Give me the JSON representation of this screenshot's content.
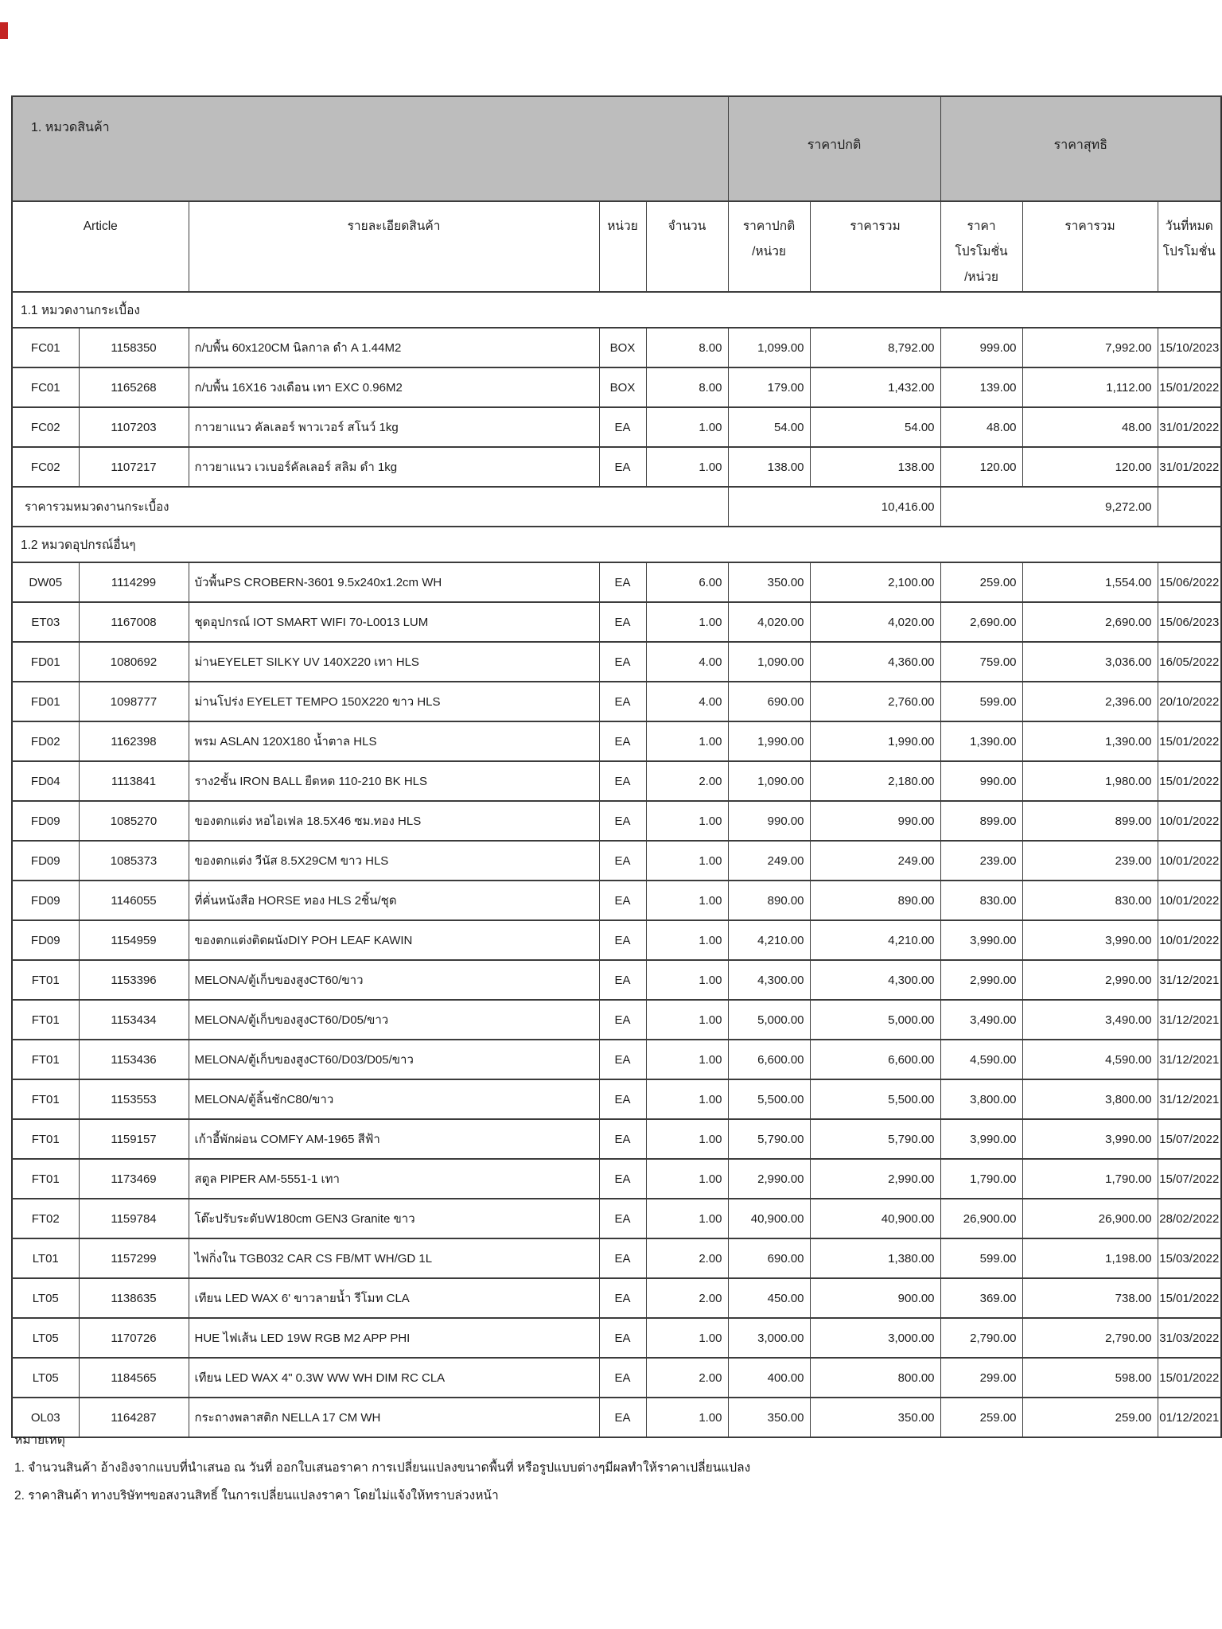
{
  "colors": {
    "header_bg": "#bdbdbd",
    "border": "#3c3c3c",
    "red_mark": "#c42423",
    "page_bg": "#ffffff",
    "text": "#1b1b1b"
  },
  "header": {
    "title": "1. หมวดสินค้า",
    "normal_price_group": "ราคาปกติ",
    "net_price_group": "ราคาสุทธิ"
  },
  "columns": {
    "article": "Article",
    "description": "รายละเอียดสินค้า",
    "unit": "หน่วย",
    "qty": "จำนวน",
    "normal_unit_price_line1": "ราคาปกติ",
    "normal_unit_price_line2": "/หน่วย",
    "normal_total": "ราคารวม",
    "promo_unit_price_line1": "ราคา",
    "promo_unit_price_line2": "โปรโมชั่น",
    "promo_unit_price_line3": "/หน่วย",
    "promo_total": "ราคารวม",
    "promo_end_line1": "วันที่หมด",
    "promo_end_line2": "โปรโมชั่น"
  },
  "sections": [
    {
      "heading": "1.1 หมวดงานกระเบื้อง",
      "rows": [
        [
          "FC01",
          "1158350",
          "ก/บพื้น 60x120CM นิลกาล ดำ A 1.44M2",
          "BOX",
          "8.00",
          "1,099.00",
          "8,792.00",
          "999.00",
          "7,992.00",
          "15/10/2023"
        ],
        [
          "FC01",
          "1165268",
          "ก/บพื้น 16X16 วงเดือน เทา EXC 0.96M2",
          "BOX",
          "8.00",
          "179.00",
          "1,432.00",
          "139.00",
          "1,112.00",
          "15/01/2022"
        ],
        [
          "FC02",
          "1107203",
          "กาวยาแนว คัลเลอร์ พาวเวอร์ สโนว์ 1kg",
          "EA",
          "1.00",
          "54.00",
          "54.00",
          "48.00",
          "48.00",
          "31/01/2022"
        ],
        [
          "FC02",
          "1107217",
          "กาวยาแนว เวเบอร์คัลเลอร์ สลิม ดำ 1kg",
          "EA",
          "1.00",
          "138.00",
          "138.00",
          "120.00",
          "120.00",
          "31/01/2022"
        ]
      ],
      "subtotal": {
        "label": "ราคารวมหมวดงานกระเบื้อง",
        "normal_total": "10,416.00",
        "net_total": "9,272.00"
      }
    },
    {
      "heading": "1.2 หมวดอุปกรณ์อื่นๆ",
      "rows": [
        [
          "DW05",
          "1114299",
          "บัวพื้นPS CROBERN-3601 9.5x240x1.2cm WH",
          "EA",
          "6.00",
          "350.00",
          "2,100.00",
          "259.00",
          "1,554.00",
          "15/06/2022"
        ],
        [
          "ET03",
          "1167008",
          "ชุดอุปกรณ์ IOT SMART WIFI 70-L0013 LUM",
          "EA",
          "1.00",
          "4,020.00",
          "4,020.00",
          "2,690.00",
          "2,690.00",
          "15/06/2023"
        ],
        [
          "FD01",
          "1080692",
          "ม่านEYELET SILKY UV 140X220 เทา HLS",
          "EA",
          "4.00",
          "1,090.00",
          "4,360.00",
          "759.00",
          "3,036.00",
          "16/05/2022"
        ],
        [
          "FD01",
          "1098777",
          "ม่านโปร่ง EYELET TEMPO 150X220 ขาว HLS",
          "EA",
          "4.00",
          "690.00",
          "2,760.00",
          "599.00",
          "2,396.00",
          "20/10/2022"
        ],
        [
          "FD02",
          "1162398",
          "พรม ASLAN 120X180 น้ำตาล HLS",
          "EA",
          "1.00",
          "1,990.00",
          "1,990.00",
          "1,390.00",
          "1,390.00",
          "15/01/2022"
        ],
        [
          "FD04",
          "1113841",
          "ราง2ชั้น IRON BALL ยืดหด 110-210 BK HLS",
          "EA",
          "2.00",
          "1,090.00",
          "2,180.00",
          "990.00",
          "1,980.00",
          "15/01/2022"
        ],
        [
          "FD09",
          "1085270",
          "ของตกแต่ง หอไอเฟล 18.5X46 ซม.ทอง HLS",
          "EA",
          "1.00",
          "990.00",
          "990.00",
          "899.00",
          "899.00",
          "10/01/2022"
        ],
        [
          "FD09",
          "1085373",
          "ของตกแต่ง วีนัส 8.5X29CM ขาว HLS",
          "EA",
          "1.00",
          "249.00",
          "249.00",
          "239.00",
          "239.00",
          "10/01/2022"
        ],
        [
          "FD09",
          "1146055",
          "ที่คั่นหนังสือ HORSE ทอง HLS 2ชิ้น/ชุด",
          "EA",
          "1.00",
          "890.00",
          "890.00",
          "830.00",
          "830.00",
          "10/01/2022"
        ],
        [
          "FD09",
          "1154959",
          "ของตกแต่งติดผนังDIY POH LEAF KAWIN",
          "EA",
          "1.00",
          "4,210.00",
          "4,210.00",
          "3,990.00",
          "3,990.00",
          "10/01/2022"
        ],
        [
          "FT01",
          "1153396",
          "MELONA/ตู้เก็บของสูงCT60/ขาว",
          "EA",
          "1.00",
          "4,300.00",
          "4,300.00",
          "2,990.00",
          "2,990.00",
          "31/12/2021"
        ],
        [
          "FT01",
          "1153434",
          "MELONA/ตู้เก็บของสูงCT60/D05/ขาว",
          "EA",
          "1.00",
          "5,000.00",
          "5,000.00",
          "3,490.00",
          "3,490.00",
          "31/12/2021"
        ],
        [
          "FT01",
          "1153436",
          "MELONA/ตู้เก็บของสูงCT60/D03/D05/ขาว",
          "EA",
          "1.00",
          "6,600.00",
          "6,600.00",
          "4,590.00",
          "4,590.00",
          "31/12/2021"
        ],
        [
          "FT01",
          "1153553",
          "MELONA/ตู้ลิ้นชักC80/ขาว",
          "EA",
          "1.00",
          "5,500.00",
          "5,500.00",
          "3,800.00",
          "3,800.00",
          "31/12/2021"
        ],
        [
          "FT01",
          "1159157",
          "เก้าอี้พักผ่อน COMFY AM-1965  สีฟ้า",
          "EA",
          "1.00",
          "5,790.00",
          "5,790.00",
          "3,990.00",
          "3,990.00",
          "15/07/2022"
        ],
        [
          "FT01",
          "1173469",
          "สตูล PIPER AM-5551-1 เทา",
          "EA",
          "1.00",
          "2,990.00",
          "2,990.00",
          "1,790.00",
          "1,790.00",
          "15/07/2022"
        ],
        [
          "FT02",
          "1159784",
          "โต๊ะปรับระดับW180cm GEN3  Granite ขาว",
          "EA",
          "1.00",
          "40,900.00",
          "40,900.00",
          "26,900.00",
          "26,900.00",
          "28/02/2022"
        ],
        [
          "LT01",
          "1157299",
          "ไฟกิ่งใน TGB032 CAR CS FB/MT WH/GD 1L",
          "EA",
          "2.00",
          "690.00",
          "1,380.00",
          "599.00",
          "1,198.00",
          "15/03/2022"
        ],
        [
          "LT05",
          "1138635",
          "เทียน LED WAX 6' ขาวลายน้ำ รีโมท CLA",
          "EA",
          "2.00",
          "450.00",
          "900.00",
          "369.00",
          "738.00",
          "15/01/2022"
        ],
        [
          "LT05",
          "1170726",
          "HUE ไฟเส้น LED 19W RGB M2 APP PHI",
          "EA",
          "1.00",
          "3,000.00",
          "3,000.00",
          "2,790.00",
          "2,790.00",
          "31/03/2022"
        ],
        [
          "LT05",
          "1184565",
          "เทียน LED WAX 4\" 0.3W WW WH DIM RC CLA",
          "EA",
          "2.00",
          "400.00",
          "800.00",
          "299.00",
          "598.00",
          "15/01/2022"
        ],
        [
          "OL03",
          "1164287",
          "กระถางพลาสติก NELLA 17 CM WH",
          "EA",
          "1.00",
          "350.00",
          "350.00",
          "259.00",
          "259.00",
          "01/12/2021"
        ]
      ],
      "subtotal": null
    }
  ],
  "notes": {
    "heading": "หมายเหตุ",
    "items": [
      "1. จำนวนสินค้า อ้างอิงจากแบบที่นำเสนอ ณ วันที่ ออกใบเสนอราคา การเปลี่ยนแปลงขนาดพื้นที่ หรือรูปแบบต่างๆมีผลทำให้ราคาเปลี่ยนแปลง",
      "2. ราคาสินค้า ทางบริษัทฯขอสงวนสิทธิ์ ในการเปลี่ยนแปลงราคา โดยไม่แจ้งให้ทราบล่วงหน้า"
    ]
  }
}
